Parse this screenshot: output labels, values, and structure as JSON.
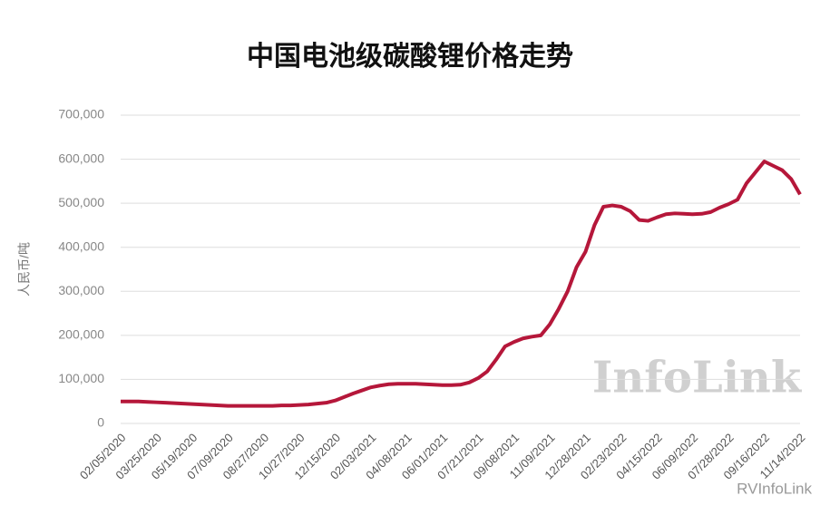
{
  "chart_data": {
    "type": "line",
    "title": "中国电池级碳酸锂价格走势",
    "y_label": "人民币/吨",
    "annotations": [
      "InfoLink",
      "RVInfoLink"
    ],
    "categories": [
      "02/05/2020",
      null,
      null,
      null,
      "03/25/2020",
      null,
      null,
      null,
      "05/19/2020",
      null,
      null,
      null,
      "07/09/2020",
      null,
      null,
      null,
      "08/27/2020",
      null,
      null,
      null,
      "10/27/2020",
      null,
      null,
      null,
      "12/15/2020",
      null,
      null,
      null,
      "02/03/2021",
      null,
      null,
      null,
      "04/08/2021",
      null,
      null,
      null,
      "06/01/2021",
      null,
      null,
      null,
      "07/21/2021",
      null,
      null,
      null,
      "09/08/2021",
      null,
      null,
      null,
      "11/09/2021",
      null,
      null,
      null,
      "12/28/2021",
      null,
      null,
      null,
      "02/23/2022",
      null,
      null,
      null,
      "04/15/2022",
      null,
      null,
      null,
      "06/09/2022",
      null,
      null,
      null,
      "07/28/2022",
      null,
      null,
      null,
      "09/16/2022",
      null,
      null,
      null,
      "11/14/2022"
    ],
    "series": [
      {
        "color": "#b5173a",
        "values": [
          50000,
          50000,
          50000,
          49000,
          48000,
          47000,
          46000,
          45000,
          44000,
          43000,
          42000,
          41000,
          40000,
          40000,
          40000,
          40000,
          40000,
          40000,
          41000,
          41000,
          42000,
          43000,
          45000,
          47000,
          52000,
          60000,
          68000,
          75000,
          82000,
          86000,
          89000,
          90000,
          90000,
          90000,
          89000,
          88000,
          87000,
          87000,
          88000,
          93000,
          103000,
          118000,
          145000,
          175000,
          185000,
          193000,
          197000,
          200000,
          225000,
          260000,
          300000,
          355000,
          390000,
          450000,
          492000,
          495000,
          492000,
          482000,
          462000,
          460000,
          468000,
          475000,
          477000,
          476000,
          475000,
          476000,
          480000,
          490000,
          498000,
          508000,
          545000,
          570000,
          595000,
          585000,
          575000,
          555000,
          520000
        ]
      }
    ],
    "ylim": [
      0,
      700000
    ],
    "yticks": [
      0,
      {
        "value": 100000,
        "label": "100,000"
      },
      {
        "value": 200000,
        "label": "200,000"
      },
      {
        "value": 300000,
        "label": "300,000"
      },
      {
        "value": 400000,
        "label": "400,000"
      },
      {
        "value": 500000,
        "label": "500,000"
      },
      {
        "value": 600000,
        "label": "600,000"
      },
      {
        "value": 700000,
        "label": "700,000"
      }
    ],
    "grid": true
  }
}
